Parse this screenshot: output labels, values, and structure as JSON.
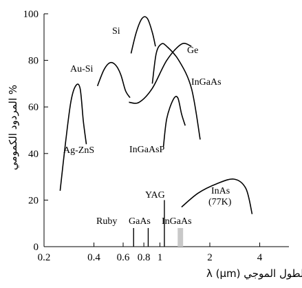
{
  "chart_data": {
    "type": "line",
    "ylabel": "% المردود الكمومي",
    "xlabel": "الطول الموجي λ (μm)",
    "xscale": "log",
    "xlim": [
      0.2,
      6
    ],
    "ylim": [
      0,
      100
    ],
    "x_ticks": [
      0.2,
      0.4,
      0.6,
      0.8,
      1,
      2,
      4
    ],
    "x_tick_labels": [
      "0.2",
      "0.4",
      "0.6",
      "0.8",
      "1",
      "2",
      "4"
    ],
    "y_ticks": [
      0,
      20,
      40,
      60,
      80,
      100
    ],
    "y_tick_labels": [
      "0",
      "20",
      "40",
      "60",
      "80",
      "100"
    ],
    "grid": false,
    "series": [
      {
        "name": "Ag-ZnS",
        "x": [
          0.25,
          0.27,
          0.29,
          0.31,
          0.33,
          0.345,
          0.36
        ],
        "y": [
          24,
          45,
          62,
          69,
          68,
          54,
          44
        ]
      },
      {
        "name": "Au-Si",
        "x": [
          0.42,
          0.46,
          0.5,
          0.54,
          0.58,
          0.62,
          0.66
        ],
        "y": [
          69,
          76,
          79,
          78,
          74,
          67,
          64
        ]
      },
      {
        "name": "Si",
        "x": [
          0.67,
          0.72,
          0.78,
          0.84,
          0.9,
          0.94
        ],
        "y": [
          83,
          92,
          98,
          98,
          92,
          86
        ]
      },
      {
        "name": "Ge",
        "x": [
          0.65,
          0.75,
          0.9,
          1.1,
          1.35,
          1.55
        ],
        "y": [
          62,
          62,
          68,
          80,
          87,
          86
        ]
      },
      {
        "name": "InGaAs",
        "x": [
          0.9,
          0.95,
          1.02,
          1.1,
          1.3,
          1.55,
          1.75
        ],
        "y": [
          70,
          83,
          87,
          86,
          80,
          68,
          46
        ]
      },
      {
        "name": "InGaAsP",
        "x": [
          1.05,
          1.1,
          1.2,
          1.28,
          1.35,
          1.42
        ],
        "y": [
          43,
          55,
          63,
          64,
          57,
          52
        ]
      },
      {
        "name": "InAs (77K)",
        "x": [
          1.35,
          1.7,
          2.2,
          2.8,
          3.3,
          3.6
        ],
        "y": [
          17,
          23,
          27,
          29,
          25,
          14
        ]
      }
    ],
    "curve_labels": [
      {
        "key": "ag_zns",
        "text": "Ag-ZnS"
      },
      {
        "key": "au_si",
        "text": "Au-Si"
      },
      {
        "key": "si",
        "text": "Si"
      },
      {
        "key": "ge",
        "text": "Ge"
      },
      {
        "key": "ingaas_curve",
        "text": "InGaAs"
      },
      {
        "key": "ingaasp",
        "text": "InGaAsP"
      },
      {
        "key": "inas_1",
        "text": "InAs"
      },
      {
        "key": "inas_2",
        "text": "(77K)"
      }
    ],
    "markers": [
      {
        "name": "Ruby",
        "x": 0.694,
        "y_top": 8,
        "label": "Ruby"
      },
      {
        "name": "GaAs",
        "x": 0.85,
        "y_top": 8,
        "label": "GaAs"
      },
      {
        "name": "YAG",
        "x": 1.064,
        "y_top": 20,
        "label": "YAG"
      }
    ],
    "band": {
      "name": "InGaAs",
      "x_start": 1.28,
      "x_end": 1.38,
      "y_top": 8,
      "color": "#c8c8c8",
      "label": "InGaAs"
    }
  }
}
